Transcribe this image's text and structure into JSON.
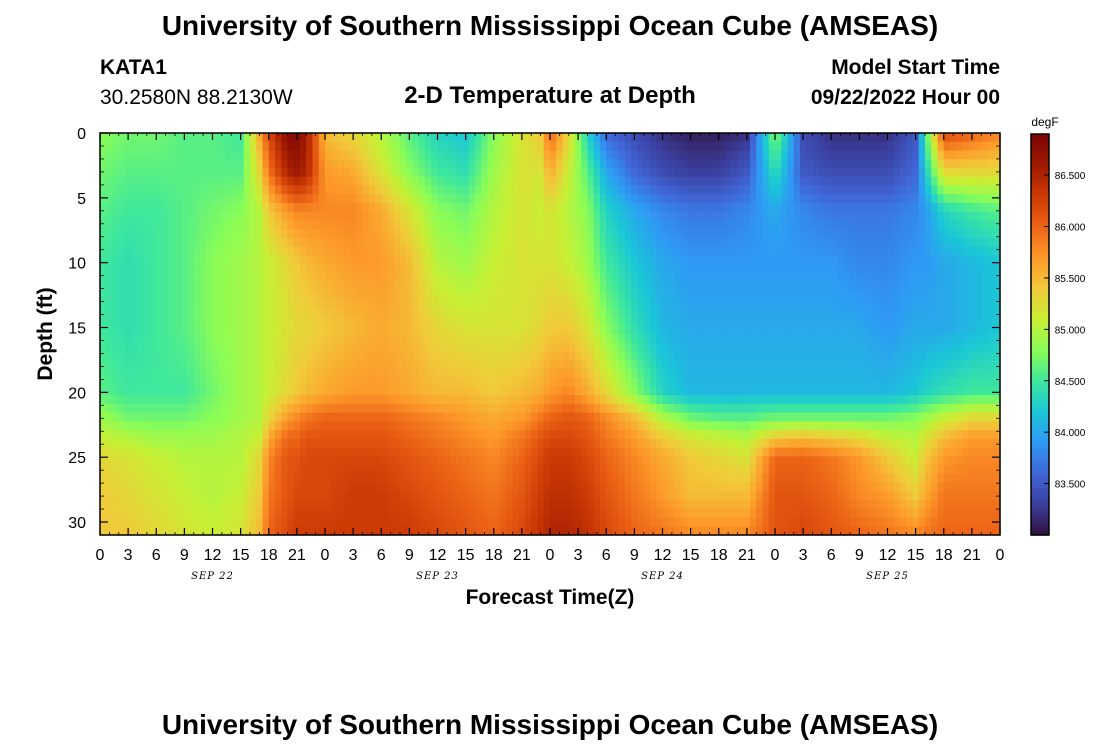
{
  "header": {
    "title": "University of Southern Mississippi Ocean Cube (AMSEAS)",
    "station_id": "KATA1",
    "station_coords": "30.2580N  88.2130W",
    "subtitle": "2-D Temperature at Depth",
    "model_start_label": "Model Start Time",
    "model_start_value": "09/22/2022 Hour 00"
  },
  "footer": {
    "title": "University of Southern Mississippi Ocean Cube (AMSEAS)"
  },
  "chart_data": {
    "type": "heatmap",
    "title": "2-D Temperature at Depth",
    "xlabel": "Forecast Time(Z)",
    "ylabel": "Depth (ft)",
    "x_range_hours": [
      0,
      96
    ],
    "x_tick_step_hours": 3,
    "x_tick_labels": [
      "0",
      "3",
      "6",
      "9",
      "12",
      "15",
      "18",
      "21",
      "0",
      "3",
      "6",
      "9",
      "12",
      "15",
      "18",
      "21",
      "0",
      "3",
      "6",
      "9",
      "12",
      "15",
      "18",
      "21",
      "0",
      "3",
      "6",
      "9",
      "12",
      "15",
      "18",
      "21",
      "0"
    ],
    "date_labels": [
      {
        "label": "SEP 22",
        "hour": 12
      },
      {
        "label": "SEP 23",
        "hour": 36
      },
      {
        "label": "SEP 24",
        "hour": 60
      },
      {
        "label": "SEP 25",
        "hour": 84
      }
    ],
    "y_range_ft": [
      0,
      31
    ],
    "y_ticks": [
      0,
      5,
      10,
      15,
      20,
      25,
      30
    ],
    "colorbar": {
      "unit": "degF",
      "range": [
        83.0,
        86.9
      ],
      "labeled_ticks": [
        "83.500",
        "84.000",
        "84.500",
        "85.000",
        "85.500",
        "86.000",
        "86.500"
      ],
      "colors": [
        "#30123b",
        "#3b3f9f",
        "#4067d7",
        "#2f99f5",
        "#1ac7d6",
        "#3fe89c",
        "#8bfd56",
        "#c8ef34",
        "#f1ca3a",
        "#fd9a2a",
        "#ec6316",
        "#cc3a05",
        "#a01a02",
        "#7a0403"
      ]
    },
    "series": [
      {
        "name": "temperature_degF_by_depth_ft",
        "depths_ft": [
          0,
          3,
          6,
          10,
          15,
          20,
          22,
          23.5,
          25,
          28,
          31
        ]
      }
    ],
    "time_hours": [
      0,
      3,
      6,
      9,
      12,
      15,
      17,
      18,
      20,
      21,
      22,
      24,
      27,
      30,
      33,
      36,
      39,
      42,
      45,
      47,
      48,
      50,
      52,
      54,
      57,
      60,
      63,
      66,
      69,
      72,
      75,
      78,
      81,
      84,
      87,
      88,
      90,
      93,
      96
    ],
    "temperature_degF": [
      [
        84.8,
        84.7,
        84.6,
        84.5,
        84.5,
        84.6,
        84.9,
        85.1,
        85.3,
        85.4,
        85.4
      ],
      [
        84.7,
        84.6,
        84.5,
        84.4,
        84.4,
        84.5,
        84.7,
        85.0,
        85.2,
        85.3,
        85.4
      ],
      [
        84.7,
        84.6,
        84.5,
        84.5,
        84.5,
        84.5,
        84.7,
        84.9,
        85.1,
        85.2,
        85.3
      ],
      [
        84.6,
        84.6,
        84.6,
        84.6,
        84.6,
        84.5,
        84.7,
        84.9,
        85.0,
        85.1,
        85.2
      ],
      [
        84.6,
        84.6,
        84.7,
        84.8,
        84.8,
        84.7,
        84.8,
        84.9,
        85.0,
        85.0,
        85.1
      ],
      [
        84.5,
        84.6,
        84.8,
        84.9,
        84.9,
        84.9,
        84.9,
        85.0,
        85.0,
        85.1,
        85.2
      ],
      [
        85.6,
        85.3,
        85.0,
        85.0,
        85.0,
        85.0,
        85.0,
        85.1,
        85.3,
        85.4,
        85.5
      ],
      [
        86.2,
        85.9,
        85.4,
        85.1,
        85.1,
        85.1,
        85.3,
        85.6,
        85.8,
        85.9,
        86.0
      ],
      [
        86.8,
        86.5,
        85.7,
        85.3,
        85.2,
        85.3,
        85.7,
        86.0,
        86.1,
        86.1,
        86.2
      ],
      [
        86.8,
        86.6,
        85.8,
        85.4,
        85.3,
        85.4,
        85.8,
        86.0,
        86.1,
        86.2,
        86.3
      ],
      [
        86.6,
        86.5,
        85.8,
        85.5,
        85.3,
        85.5,
        85.9,
        86.1,
        86.2,
        86.2,
        86.3
      ],
      [
        85.5,
        85.7,
        85.8,
        85.6,
        85.4,
        85.6,
        86.0,
        86.1,
        86.2,
        86.2,
        86.3
      ],
      [
        85.3,
        85.6,
        85.8,
        85.7,
        85.5,
        85.7,
        86.0,
        86.1,
        86.2,
        86.3,
        86.3
      ],
      [
        85.0,
        85.2,
        85.6,
        85.7,
        85.6,
        85.7,
        86.0,
        86.1,
        86.2,
        86.3,
        86.3
      ],
      [
        84.6,
        84.8,
        85.2,
        85.5,
        85.5,
        85.6,
        85.9,
        86.0,
        86.1,
        86.2,
        86.3
      ],
      [
        84.3,
        84.5,
        84.8,
        85.0,
        85.3,
        85.5,
        85.8,
        85.9,
        86.0,
        86.1,
        86.2
      ],
      [
        84.2,
        84.4,
        84.7,
        84.9,
        85.2,
        85.5,
        85.7,
        85.8,
        85.9,
        86.0,
        86.1
      ],
      [
        84.8,
        84.9,
        85.0,
        85.1,
        85.2,
        85.4,
        85.6,
        85.7,
        85.8,
        85.9,
        86.0
      ],
      [
        85.2,
        85.2,
        85.2,
        85.2,
        85.2,
        85.5,
        85.7,
        85.9,
        86.0,
        86.1,
        86.2
      ],
      [
        85.4,
        85.2,
        85.1,
        85.2,
        85.3,
        85.6,
        85.9,
        86.1,
        86.2,
        86.3,
        86.4
      ],
      [
        86.0,
        85.6,
        85.2,
        85.2,
        85.4,
        85.7,
        86.0,
        86.2,
        86.3,
        86.4,
        86.5
      ],
      [
        85.3,
        85.1,
        85.0,
        85.1,
        85.4,
        85.8,
        86.1,
        86.2,
        86.3,
        86.4,
        86.5
      ],
      [
        84.3,
        84.6,
        84.8,
        84.9,
        85.2,
        85.6,
        86.0,
        86.1,
        86.2,
        86.3,
        86.4
      ],
      [
        83.6,
        84.0,
        84.3,
        84.5,
        84.8,
        85.3,
        85.8,
        85.9,
        86.0,
        86.1,
        86.2
      ],
      [
        83.4,
        83.6,
        84.0,
        84.2,
        84.4,
        84.8,
        85.5,
        85.7,
        85.8,
        85.9,
        86.0
      ],
      [
        83.2,
        83.4,
        83.8,
        84.0,
        84.1,
        84.3,
        85.0,
        85.4,
        85.6,
        85.7,
        85.9
      ],
      [
        83.1,
        83.3,
        83.7,
        83.9,
        84.0,
        84.1,
        84.7,
        85.2,
        85.4,
        85.5,
        85.8
      ],
      [
        83.1,
        83.3,
        83.7,
        83.9,
        84.0,
        84.1,
        84.6,
        85.1,
        85.3,
        85.5,
        85.8
      ],
      [
        83.2,
        83.5,
        83.8,
        83.9,
        84.0,
        84.1,
        84.6,
        85.0,
        85.2,
        85.5,
        85.8
      ],
      [
        84.8,
        84.4,
        84.0,
        83.9,
        84.0,
        84.1,
        84.7,
        85.4,
        86.0,
        86.1,
        86.1
      ],
      [
        83.4,
        83.5,
        83.8,
        83.9,
        84.0,
        84.1,
        84.7,
        85.5,
        86.0,
        86.1,
        86.2
      ],
      [
        83.2,
        83.4,
        83.7,
        83.9,
        84.0,
        84.1,
        84.7,
        85.4,
        85.9,
        86.0,
        86.1
      ],
      [
        83.2,
        83.4,
        83.7,
        83.8,
        84.0,
        84.1,
        84.7,
        85.3,
        85.7,
        85.8,
        86.0
      ],
      [
        83.2,
        83.4,
        83.7,
        83.8,
        83.9,
        84.1,
        84.7,
        85.1,
        85.4,
        85.7,
        85.9
      ],
      [
        83.5,
        83.6,
        83.8,
        83.9,
        84.0,
        84.2,
        84.8,
        85.0,
        85.1,
        85.4,
        85.8
      ],
      [
        84.5,
        84.2,
        83.9,
        83.9,
        84.0,
        84.3,
        84.9,
        85.2,
        85.4,
        85.6,
        85.9
      ],
      [
        86.2,
        85.3,
        84.3,
        84.0,
        84.0,
        84.4,
        85.1,
        85.5,
        85.7,
        85.9,
        86.0
      ],
      [
        86.0,
        85.3,
        84.5,
        84.1,
        84.1,
        84.5,
        85.3,
        85.7,
        85.8,
        85.9,
        86.0
      ],
      [
        85.8,
        85.3,
        84.6,
        84.2,
        84.2,
        84.5,
        85.3,
        85.7,
        85.8,
        85.9,
        86.0
      ]
    ]
  }
}
